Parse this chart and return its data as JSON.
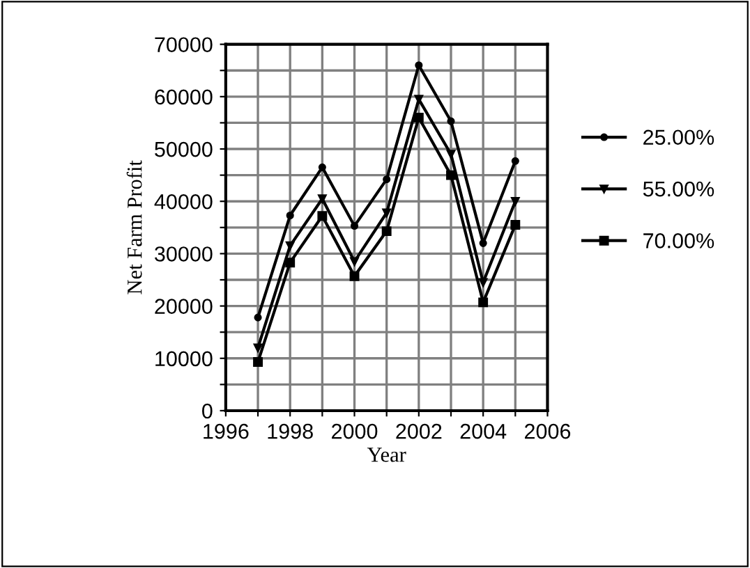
{
  "chart_data": {
    "type": "line",
    "xlabel": "Year",
    "ylabel": "Net Farm Profit",
    "x": [
      1997,
      1998,
      1999,
      2000,
      2001,
      2002,
      2003,
      2004,
      2005
    ],
    "series": [
      {
        "name": "25.00%",
        "color": "#000000",
        "marker": "circle",
        "values": [
          17800,
          37300,
          46500,
          35300,
          44200,
          66000,
          55300,
          32000,
          47700
        ]
      },
      {
        "name": "55.00%",
        "color": "#000000",
        "marker": "triangle",
        "values": [
          12000,
          31500,
          40500,
          28500,
          37800,
          59500,
          49000,
          24500,
          40000
        ]
      },
      {
        "name": "70.00%",
        "color": "#000000",
        "marker": "square",
        "values": [
          9300,
          28300,
          37200,
          25700,
          34300,
          56000,
          45000,
          20700,
          35500
        ]
      }
    ],
    "xlim": [
      1996,
      2006
    ],
    "xticks": [
      1996,
      {
        "value": 1997,
        "label": null
      },
      1998,
      {
        "value": 1999,
        "label": null
      },
      2000,
      {
        "value": 2001,
        "label": null
      },
      2002,
      {
        "value": 2003,
        "label": null
      },
      2004,
      {
        "value": 2005,
        "label": null
      },
      2006
    ],
    "ylim": [
      0,
      70000
    ],
    "yticks": [
      0,
      {
        "value": 5000,
        "label": null
      },
      10000,
      {
        "value": 15000,
        "label": null
      },
      20000,
      {
        "value": 25000,
        "label": null
      },
      30000,
      {
        "value": 35000,
        "label": null
      },
      40000,
      {
        "value": 45000,
        "label": null
      },
      50000,
      {
        "value": 55000,
        "label": null
      },
      60000,
      {
        "value": 65000,
        "label": null
      },
      70000
    ],
    "grid": true,
    "legend": "right",
    "line_style": "solid"
  }
}
